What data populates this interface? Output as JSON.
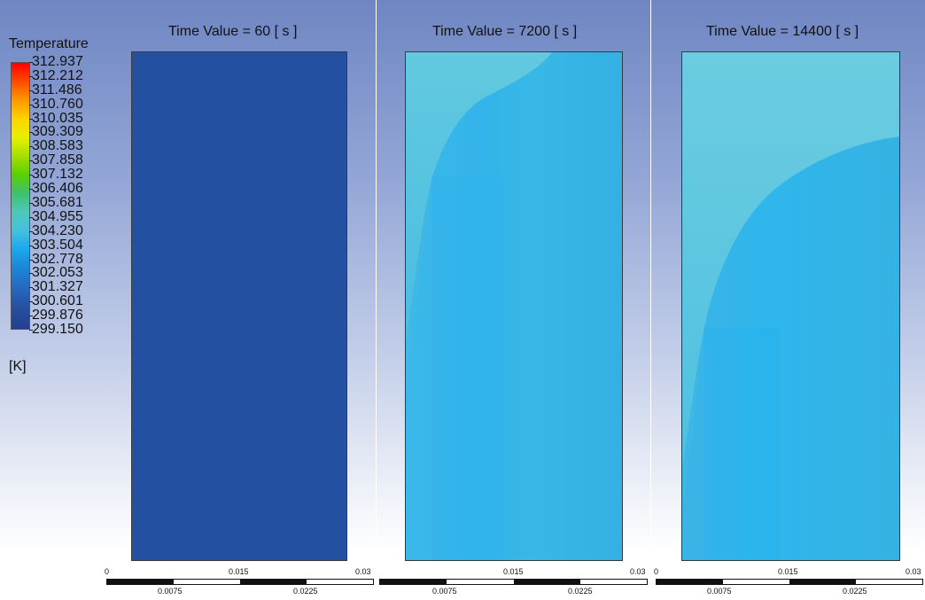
{
  "legend": {
    "title": "Temperature",
    "unit": "[K]",
    "labels": [
      "312.937",
      "312.212",
      "311.486",
      "310.760",
      "310.035",
      "309.309",
      "308.583",
      "307.858",
      "307.132",
      "306.406",
      "305.681",
      "304.955",
      "304.230",
      "303.504",
      "302.778",
      "302.053",
      "301.327",
      "300.601",
      "299.876",
      "299.150"
    ],
    "colors": {
      "max": "#ff0000",
      "mid": "#5ad000",
      "min": "#233f90"
    }
  },
  "panels": [
    {
      "title": "Time Value = 60 [ s ]",
      "field_color": "#2450a2"
    },
    {
      "title": "Time Value = 7200 [ s ]",
      "field_color": "#35b5e8"
    },
    {
      "title": "Time Value = 14400 [ s ]",
      "field_color": "#33b5e9"
    }
  ],
  "scale": {
    "top_labels": [
      "0",
      "0.015",
      "0.03"
    ],
    "bottom_labels": [
      "0.0075",
      "0.0225"
    ]
  }
}
